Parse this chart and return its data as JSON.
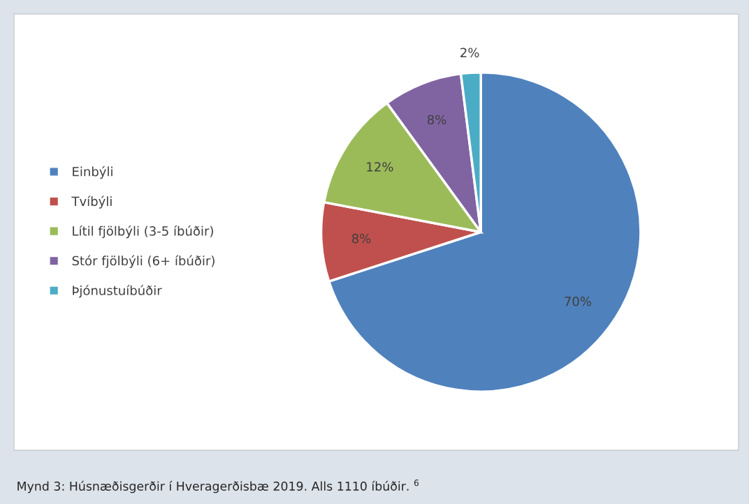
{
  "chart_data": {
    "type": "pie",
    "categories": [
      "Einbýli",
      "Tvíbýli",
      "Lítil fjölbýli (3-5 íbúðir)",
      "Stór fjölbýli (6+ íbúðir)",
      "Þjónustuíbúðir"
    ],
    "values": [
      70,
      8,
      12,
      8,
      2
    ],
    "colors": [
      "#4f81bd",
      "#c0504d",
      "#9bbb59",
      "#8064a2",
      "#4bacc6"
    ],
    "value_labels": [
      "70%",
      "8%",
      "12%",
      "8%",
      "2%"
    ],
    "legend": "left",
    "annotations": [
      "Mynd 3: Húsnæðisgerðir í Hveragerðisbæ 2019. Alls 1110 íbúðir. $^{6}$"
    ]
  }
}
